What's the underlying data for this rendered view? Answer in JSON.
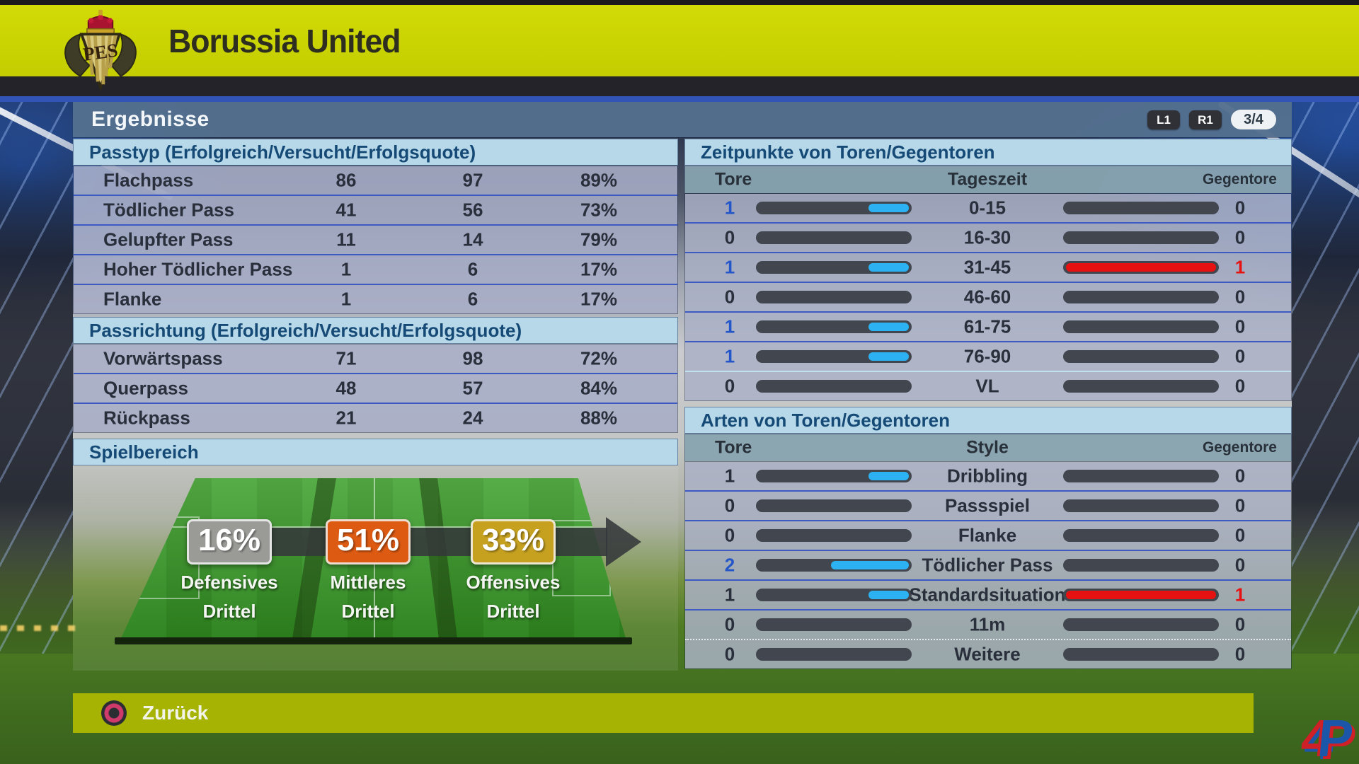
{
  "header": {
    "team_name": "Borussia United"
  },
  "titlebar": {
    "title": "Ergebnisse",
    "l1_label": "L1",
    "r1_label": "R1",
    "page_indicator": "3/4"
  },
  "pass_type": {
    "title": "Passtyp (Erfolgreich/Versucht/Erfolgsquote)",
    "rows": [
      {
        "label": "Flachpass",
        "successful": "86",
        "attempted": "97",
        "rate": "89%"
      },
      {
        "label": "Tödlicher Pass",
        "successful": "41",
        "attempted": "56",
        "rate": "73%"
      },
      {
        "label": "Gelupfter Pass",
        "successful": "11",
        "attempted": "14",
        "rate": "79%"
      },
      {
        "label": "Hoher Tödlicher Pass",
        "successful": "1",
        "attempted": "6",
        "rate": "17%"
      },
      {
        "label": "Flanke",
        "successful": "1",
        "attempted": "6",
        "rate": "17%"
      }
    ]
  },
  "pass_direction": {
    "title": "Passrichtung (Erfolgreich/Versucht/Erfolgsquote)",
    "rows": [
      {
        "label": "Vorwärtspass",
        "successful": "71",
        "attempted": "98",
        "rate": "72%"
      },
      {
        "label": "Querpass",
        "successful": "48",
        "attempted": "57",
        "rate": "84%"
      },
      {
        "label": "Rückpass",
        "successful": "21",
        "attempted": "24",
        "rate": "88%"
      }
    ]
  },
  "play_area": {
    "title": "Spielbereich",
    "zones": [
      {
        "percent": "16%",
        "line1": "Defensives",
        "line2": "Drittel",
        "color": "#9a9b97"
      },
      {
        "percent": "51%",
        "line1": "Mittleres",
        "line2": "Drittel",
        "color": "#dd5a13"
      },
      {
        "percent": "33%",
        "line1": "Offensives",
        "line2": "Drittel",
        "color": "#c6a120"
      }
    ]
  },
  "goal_times": {
    "title": "Zeitpunkte von Toren/Gegentoren",
    "columns": [
      "Tore",
      "Tageszeit",
      "Gegentore"
    ],
    "rows": [
      {
        "tore": "1",
        "period": "0-15",
        "gegentore": "0",
        "tore_fill": 0.27,
        "gegen_fill": 0,
        "tore_highlight": true,
        "gegen_highlight": false,
        "sep": "normal"
      },
      {
        "tore": "0",
        "period": "16-30",
        "gegentore": "0",
        "tore_fill": 0,
        "gegen_fill": 0,
        "tore_highlight": false,
        "gegen_highlight": false,
        "sep": "normal"
      },
      {
        "tore": "1",
        "period": "31-45",
        "gegentore": "1",
        "tore_fill": 0.27,
        "gegen_fill": 1,
        "tore_highlight": true,
        "gegen_highlight": true,
        "sep": "normal"
      },
      {
        "tore": "0",
        "period": "46-60",
        "gegentore": "0",
        "tore_fill": 0,
        "gegen_fill": 0,
        "tore_highlight": false,
        "gegen_highlight": false,
        "sep": "normal"
      },
      {
        "tore": "1",
        "period": "61-75",
        "gegentore": "0",
        "tore_fill": 0.27,
        "gegen_fill": 0,
        "tore_highlight": true,
        "gegen_highlight": false,
        "sep": "normal"
      },
      {
        "tore": "1",
        "period": "76-90",
        "gegentore": "0",
        "tore_fill": 0.27,
        "gegen_fill": 0,
        "tore_highlight": true,
        "gegen_highlight": false,
        "sep": "normal"
      },
      {
        "tore": "0",
        "period": "VL",
        "gegentore": "0",
        "tore_fill": 0,
        "gegen_fill": 0,
        "tore_highlight": false,
        "gegen_highlight": false,
        "sep": "light"
      }
    ]
  },
  "goal_types": {
    "title": "Arten von Toren/Gegentoren",
    "columns": [
      "Tore",
      "Style",
      "Gegentore"
    ],
    "rows": [
      {
        "tore": "1",
        "period": "Dribbling",
        "gegentore": "0",
        "tore_fill": 0.27,
        "gegen_fill": 0,
        "tore_highlight": false,
        "gegen_highlight": false,
        "sep": "normal"
      },
      {
        "tore": "0",
        "period": "Passspiel",
        "gegentore": "0",
        "tore_fill": 0,
        "gegen_fill": 0,
        "tore_highlight": false,
        "gegen_highlight": false,
        "sep": "normal"
      },
      {
        "tore": "0",
        "period": "Flanke",
        "gegentore": "0",
        "tore_fill": 0,
        "gegen_fill": 0,
        "tore_highlight": false,
        "gegen_highlight": false,
        "sep": "normal"
      },
      {
        "tore": "2",
        "period": "Tödlicher Pass",
        "gegentore": "0",
        "tore_fill": 0.52,
        "gegen_fill": 0,
        "tore_highlight": true,
        "gegen_highlight": false,
        "sep": "normal"
      },
      {
        "tore": "1",
        "period": "Standardsituation",
        "gegentore": "1",
        "tore_fill": 0.27,
        "gegen_fill": 1,
        "tore_highlight": false,
        "gegen_highlight": true,
        "sep": "normal"
      },
      {
        "tore": "0",
        "period": "11m",
        "gegentore": "0",
        "tore_fill": 0,
        "gegen_fill": 0,
        "tore_highlight": false,
        "gegen_highlight": false,
        "sep": "normal"
      },
      {
        "tore": "0",
        "period": "Weitere",
        "gegentore": "0",
        "tore_fill": 0,
        "gegen_fill": 0,
        "tore_highlight": false,
        "gegen_highlight": false,
        "sep": "dotted"
      }
    ]
  },
  "footer": {
    "back_label": "Zurück"
  },
  "watermark": {
    "char1": "4",
    "char2": "P"
  },
  "colors": {
    "top_bar_yellow": "#c9d303",
    "bottom_bar_yellow": "#a6b303",
    "accent_cyan": "#2cb1f2",
    "accent_red": "#e81111",
    "highlight_blue": "#2356c8",
    "row_lavender": "#a7adc6",
    "header_light_blue": "#b6d8e9",
    "col_header_teal": "#88a3b0",
    "title_bar_slate": "#54708e"
  }
}
